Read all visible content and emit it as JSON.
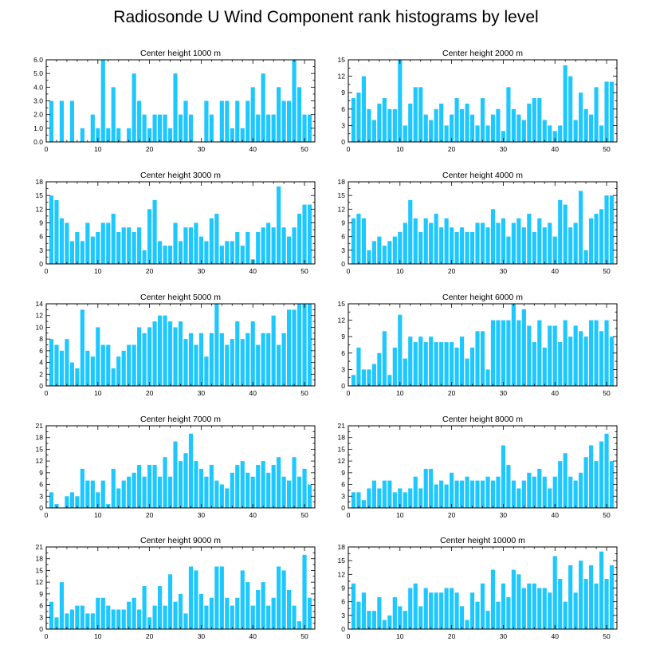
{
  "title": "Radiosonde U Wind Component rank histograms by level",
  "colors": {
    "bar": "#1ec8ff",
    "axis": "#000000",
    "background": "#ffffff"
  },
  "chart_data": [
    {
      "type": "bar",
      "title": "Center height 1000 m",
      "xlim": [
        0,
        52
      ],
      "x_ticks": [
        0,
        10,
        20,
        30,
        40,
        50
      ],
      "ylim": [
        0,
        6
      ],
      "y_ticks": [
        0,
        1,
        2,
        3,
        4,
        5,
        6
      ],
      "y_tick_labels": [
        "0.0",
        "1.0",
        "2.0",
        "3.0",
        "4.0",
        "5.0",
        "6.0"
      ],
      "categories": [
        1,
        2,
        3,
        4,
        5,
        6,
        7,
        8,
        9,
        10,
        11,
        12,
        13,
        14,
        15,
        16,
        17,
        18,
        19,
        20,
        21,
        22,
        23,
        24,
        25,
        26,
        27,
        28,
        29,
        30,
        31,
        32,
        33,
        34,
        35,
        36,
        37,
        38,
        39,
        40,
        41,
        42,
        43,
        44,
        45,
        46,
        47,
        48,
        49,
        50,
        51
      ],
      "values": [
        3,
        0,
        3,
        0,
        3,
        0,
        1,
        0,
        2,
        1,
        6,
        1,
        4,
        1,
        0,
        1,
        5,
        3,
        2,
        1,
        2,
        2,
        2,
        1,
        5,
        2,
        3,
        2,
        0,
        0,
        3,
        2,
        0,
        3,
        3,
        1,
        3,
        1,
        3,
        4,
        2,
        5,
        2,
        2,
        4,
        3,
        3,
        6,
        4,
        2,
        2
      ]
    },
    {
      "type": "bar",
      "title": "Center height 2000 m",
      "xlim": [
        0,
        52
      ],
      "x_ticks": [
        0,
        10,
        20,
        30,
        40,
        50
      ],
      "ylim": [
        0,
        15
      ],
      "y_ticks": [
        0,
        3,
        6,
        9,
        12,
        15
      ],
      "y_tick_labels": [
        "0",
        "3",
        "6",
        "9",
        "12",
        "15"
      ],
      "categories": [
        1,
        2,
        3,
        4,
        5,
        6,
        7,
        8,
        9,
        10,
        11,
        12,
        13,
        14,
        15,
        16,
        17,
        18,
        19,
        20,
        21,
        22,
        23,
        24,
        25,
        26,
        27,
        28,
        29,
        30,
        31,
        32,
        33,
        34,
        35,
        36,
        37,
        38,
        39,
        40,
        41,
        42,
        43,
        44,
        45,
        46,
        47,
        48,
        49,
        50,
        51
      ],
      "values": [
        8,
        9,
        12,
        6,
        4,
        7,
        8,
        6,
        6,
        15,
        3,
        7,
        10,
        10,
        5,
        4,
        6,
        7,
        3,
        5,
        8,
        6,
        7,
        5,
        3,
        8,
        3,
        5,
        6,
        2,
        10,
        6,
        5,
        4,
        7,
        8,
        8,
        4,
        3,
        2,
        3,
        14,
        12,
        4,
        9,
        6,
        5,
        10,
        3,
        11,
        11
      ]
    },
    {
      "type": "bar",
      "title": "Center height 3000 m",
      "xlim": [
        0,
        52
      ],
      "x_ticks": [
        0,
        10,
        20,
        30,
        40,
        50
      ],
      "ylim": [
        0,
        18
      ],
      "y_ticks": [
        0,
        3,
        6,
        9,
        12,
        15,
        18
      ],
      "y_tick_labels": [
        "0",
        "3",
        "6",
        "9",
        "12",
        "15",
        "18"
      ],
      "categories": [
        1,
        2,
        3,
        4,
        5,
        6,
        7,
        8,
        9,
        10,
        11,
        12,
        13,
        14,
        15,
        16,
        17,
        18,
        19,
        20,
        21,
        22,
        23,
        24,
        25,
        26,
        27,
        28,
        29,
        30,
        31,
        32,
        33,
        34,
        35,
        36,
        37,
        38,
        39,
        40,
        41,
        42,
        43,
        44,
        45,
        46,
        47,
        48,
        49,
        50,
        51
      ],
      "values": [
        15,
        14,
        10,
        9,
        5,
        7,
        5,
        9,
        6,
        7,
        9,
        9,
        11,
        7,
        8,
        8,
        7,
        8,
        3,
        12,
        14,
        5,
        4,
        4,
        9,
        5,
        8,
        8,
        9,
        6,
        5,
        10,
        11,
        4,
        5,
        5,
        7,
        4,
        7,
        1,
        7,
        8,
        9,
        8,
        17,
        8,
        6,
        8,
        11,
        13,
        13
      ]
    },
    {
      "type": "bar",
      "title": "Center height 4000 m",
      "xlim": [
        0,
        52
      ],
      "x_ticks": [
        0,
        10,
        20,
        30,
        40,
        50
      ],
      "ylim": [
        0,
        18
      ],
      "y_ticks": [
        0,
        3,
        6,
        9,
        12,
        15,
        18
      ],
      "y_tick_labels": [
        "0",
        "3",
        "6",
        "9",
        "12",
        "15",
        "18"
      ],
      "categories": [
        1,
        2,
        3,
        4,
        5,
        6,
        7,
        8,
        9,
        10,
        11,
        12,
        13,
        14,
        15,
        16,
        17,
        18,
        19,
        20,
        21,
        22,
        23,
        24,
        25,
        26,
        27,
        28,
        29,
        30,
        31,
        32,
        33,
        34,
        35,
        36,
        37,
        38,
        39,
        40,
        41,
        42,
        43,
        44,
        45,
        46,
        47,
        48,
        49,
        50,
        51
      ],
      "values": [
        10,
        11,
        10,
        3,
        5,
        6,
        4,
        5,
        6,
        7,
        9,
        14,
        10,
        7,
        10,
        9,
        11,
        8,
        10,
        8,
        7,
        8,
        7,
        7,
        9,
        9,
        8,
        12,
        9,
        10,
        6,
        9,
        10,
        8,
        11,
        7,
        10,
        8,
        9,
        6,
        14,
        13,
        8,
        9,
        16,
        3,
        10,
        11,
        12,
        15,
        15
      ]
    },
    {
      "type": "bar",
      "title": "Center height 5000 m",
      "xlim": [
        0,
        52
      ],
      "x_ticks": [
        0,
        10,
        20,
        30,
        40,
        50
      ],
      "ylim": [
        0,
        14
      ],
      "y_ticks": [
        0,
        2,
        4,
        6,
        8,
        10,
        12,
        14
      ],
      "y_tick_labels": [
        "0",
        "2",
        "4",
        "6",
        "8",
        "10",
        "12",
        "14"
      ],
      "categories": [
        1,
        2,
        3,
        4,
        5,
        6,
        7,
        8,
        9,
        10,
        11,
        12,
        13,
        14,
        15,
        16,
        17,
        18,
        19,
        20,
        21,
        22,
        23,
        24,
        25,
        26,
        27,
        28,
        29,
        30,
        31,
        32,
        33,
        34,
        35,
        36,
        37,
        38,
        39,
        40,
        41,
        42,
        43,
        44,
        45,
        46,
        47,
        48,
        49,
        50,
        51
      ],
      "values": [
        8,
        7,
        6,
        8,
        4,
        3,
        13,
        6,
        5,
        10,
        7,
        7,
        3,
        5,
        6,
        7,
        7,
        10,
        9,
        10,
        11,
        12,
        12,
        11,
        10,
        11,
        8,
        9,
        7,
        9,
        5,
        9,
        14,
        9,
        7,
        8,
        11,
        8,
        9,
        11,
        7,
        9,
        9,
        12,
        7,
        9,
        13,
        13,
        14,
        14,
        14
      ]
    },
    {
      "type": "bar",
      "title": "Center height 6000 m",
      "xlim": [
        0,
        52
      ],
      "x_ticks": [
        0,
        10,
        20,
        30,
        40,
        50
      ],
      "ylim": [
        0,
        15
      ],
      "y_ticks": [
        0,
        3,
        6,
        9,
        12,
        15
      ],
      "y_tick_labels": [
        "0",
        "3",
        "6",
        "9",
        "12",
        "15"
      ],
      "categories": [
        1,
        2,
        3,
        4,
        5,
        6,
        7,
        8,
        9,
        10,
        11,
        12,
        13,
        14,
        15,
        16,
        17,
        18,
        19,
        20,
        21,
        22,
        23,
        24,
        25,
        26,
        27,
        28,
        29,
        30,
        31,
        32,
        33,
        34,
        35,
        36,
        37,
        38,
        39,
        40,
        41,
        42,
        43,
        44,
        45,
        46,
        47,
        48,
        49,
        50,
        51
      ],
      "values": [
        2,
        7,
        3,
        3,
        4,
        6,
        10,
        2,
        7,
        13,
        5,
        9,
        8,
        9,
        8,
        9,
        8,
        8,
        8,
        8,
        7,
        9,
        5,
        7,
        10,
        10,
        3,
        12,
        12,
        12,
        12,
        15,
        12,
        14,
        11,
        8,
        12,
        7,
        11,
        11,
        8,
        12,
        9,
        11,
        10,
        9,
        12,
        12,
        10,
        12,
        9
      ]
    },
    {
      "type": "bar",
      "title": "Center height 7000 m",
      "xlim": [
        0,
        52
      ],
      "x_ticks": [
        0,
        10,
        20,
        30,
        40,
        50
      ],
      "ylim": [
        0,
        21
      ],
      "y_ticks": [
        0,
        3,
        6,
        9,
        12,
        15,
        18,
        21
      ],
      "y_tick_labels": [
        "0",
        "3",
        "6",
        "9",
        "12",
        "15",
        "18",
        "21"
      ],
      "categories": [
        1,
        2,
        3,
        4,
        5,
        6,
        7,
        8,
        9,
        10,
        11,
        12,
        13,
        14,
        15,
        16,
        17,
        18,
        19,
        20,
        21,
        22,
        23,
        24,
        25,
        26,
        27,
        28,
        29,
        30,
        31,
        32,
        33,
        34,
        35,
        36,
        37,
        38,
        39,
        40,
        41,
        42,
        43,
        44,
        45,
        46,
        47,
        48,
        49,
        50,
        51
      ],
      "values": [
        4,
        1,
        0,
        3,
        4,
        3,
        10,
        7,
        7,
        4,
        7,
        1,
        10,
        5,
        7,
        8,
        9,
        11,
        8,
        11,
        11,
        8,
        13,
        8,
        17,
        12,
        14,
        19,
        12,
        10,
        8,
        11,
        7,
        6,
        5,
        9,
        11,
        12,
        9,
        8,
        11,
        12,
        9,
        11,
        13,
        8,
        7,
        13,
        8,
        10,
        6
      ]
    },
    {
      "type": "bar",
      "title": "Center height 8000 m",
      "xlim": [
        0,
        52
      ],
      "x_ticks": [
        0,
        10,
        20,
        30,
        40,
        50
      ],
      "ylim": [
        0,
        21
      ],
      "y_ticks": [
        0,
        3,
        6,
        9,
        12,
        15,
        18,
        21
      ],
      "y_tick_labels": [
        "0",
        "3",
        "6",
        "9",
        "12",
        "15",
        "18",
        "21"
      ],
      "categories": [
        1,
        2,
        3,
        4,
        5,
        6,
        7,
        8,
        9,
        10,
        11,
        12,
        13,
        14,
        15,
        16,
        17,
        18,
        19,
        20,
        21,
        22,
        23,
        24,
        25,
        26,
        27,
        28,
        29,
        30,
        31,
        32,
        33,
        34,
        35,
        36,
        37,
        38,
        39,
        40,
        41,
        42,
        43,
        44,
        45,
        46,
        47,
        48,
        49,
        50,
        51
      ],
      "values": [
        4,
        4,
        2,
        5,
        7,
        5,
        7,
        7,
        4,
        5,
        4,
        5,
        8,
        5,
        10,
        10,
        6,
        7,
        6,
        9,
        7,
        7,
        8,
        7,
        7,
        7,
        8,
        7,
        8,
        16,
        11,
        7,
        5,
        7,
        9,
        8,
        10,
        8,
        5,
        8,
        12,
        14,
        8,
        7,
        9,
        13,
        16,
        12,
        17,
        19,
        12
      ]
    },
    {
      "type": "bar",
      "title": "Center height 9000 m",
      "xlim": [
        0,
        52
      ],
      "x_ticks": [
        0,
        10,
        20,
        30,
        40,
        50
      ],
      "ylim": [
        0,
        21
      ],
      "y_ticks": [
        0,
        3,
        6,
        9,
        12,
        15,
        18,
        21
      ],
      "y_tick_labels": [
        "0",
        "3",
        "6",
        "9",
        "12",
        "15",
        "18",
        "21"
      ],
      "categories": [
        1,
        2,
        3,
        4,
        5,
        6,
        7,
        8,
        9,
        10,
        11,
        12,
        13,
        14,
        15,
        16,
        17,
        18,
        19,
        20,
        21,
        22,
        23,
        24,
        25,
        26,
        27,
        28,
        29,
        30,
        31,
        32,
        33,
        34,
        35,
        36,
        37,
        38,
        39,
        40,
        41,
        42,
        43,
        44,
        45,
        46,
        47,
        48,
        49,
        50,
        51
      ],
      "values": [
        7,
        3,
        12,
        4,
        5,
        6,
        6,
        4,
        4,
        8,
        8,
        6,
        5,
        5,
        5,
        7,
        8,
        5,
        11,
        3,
        6,
        11,
        6,
        14,
        7,
        9,
        4,
        16,
        15,
        9,
        6,
        8,
        16,
        16,
        8,
        6,
        8,
        15,
        12,
        6,
        10,
        12,
        6,
        8,
        16,
        15,
        10,
        6,
        2,
        19,
        8
      ]
    },
    {
      "type": "bar",
      "title": "Center height 10000 m",
      "xlim": [
        0,
        52
      ],
      "x_ticks": [
        0,
        10,
        20,
        30,
        40,
        50
      ],
      "ylim": [
        0,
        18
      ],
      "y_ticks": [
        0,
        3,
        6,
        9,
        12,
        15,
        18
      ],
      "y_tick_labels": [
        "0",
        "3",
        "6",
        "9",
        "12",
        "15",
        "18"
      ],
      "categories": [
        1,
        2,
        3,
        4,
        5,
        6,
        7,
        8,
        9,
        10,
        11,
        12,
        13,
        14,
        15,
        16,
        17,
        18,
        19,
        20,
        21,
        22,
        23,
        24,
        25,
        26,
        27,
        28,
        29,
        30,
        31,
        32,
        33,
        34,
        35,
        36,
        37,
        38,
        39,
        40,
        41,
        42,
        43,
        44,
        45,
        46,
        47,
        48,
        49,
        50,
        51
      ],
      "values": [
        10,
        6,
        8,
        4,
        4,
        7,
        2,
        3,
        7,
        5,
        4,
        9,
        10,
        5,
        9,
        8,
        8,
        8,
        9,
        9,
        8,
        5,
        2,
        8,
        6,
        10,
        4,
        13,
        6,
        10,
        7,
        13,
        12,
        9,
        10,
        10,
        9,
        9,
        8,
        16,
        11,
        6,
        14,
        8,
        15,
        11,
        14,
        10,
        17,
        11,
        14
      ]
    }
  ]
}
